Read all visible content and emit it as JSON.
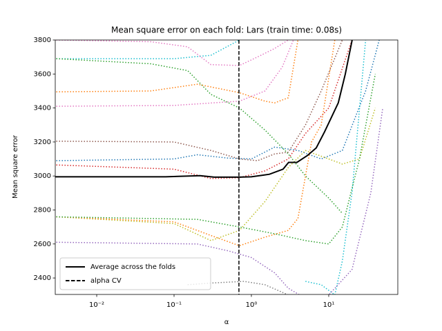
{
  "chart_data": {
    "type": "line",
    "title": "Mean square error on each fold: Lars (train time: 0.08s)",
    "x_label": "α",
    "y_label": "Mean square error",
    "xscale": "log",
    "xlim": [
      0.00291,
      78.2
    ],
    "ylim": [
      2303,
      3800
    ],
    "xticks": [
      {
        "value": 0.01,
        "label": "10⁻²"
      },
      {
        "value": 0.1,
        "label": "10⁻¹"
      },
      {
        "value": 1,
        "label": "10⁰"
      },
      {
        "value": 10,
        "label": "10¹"
      }
    ],
    "yticks": [
      2400,
      2600,
      2800,
      3000,
      3200,
      3400,
      3600,
      3800
    ],
    "legend": "lower left",
    "vline": {
      "name": "alpha CV",
      "value": 0.69,
      "color": "#000000",
      "linestyle": "dashed"
    },
    "series": [
      {
        "color": "#17becf",
        "linestyle": "dotted",
        "x": [
          0.003,
          0.1,
          0.3,
          0.7
        ],
        "values": [
          3690,
          3690,
          3710,
          3800
        ]
      },
      {
        "color": "#e377c2",
        "linestyle": "dotted",
        "x": [
          0.003,
          0.05,
          0.15,
          0.3,
          0.7,
          1.2,
          2,
          3
        ],
        "values": [
          3800,
          3790,
          3760,
          3655,
          3650,
          3700,
          3750,
          3800
        ]
      },
      {
        "color": "#2ca02c",
        "linestyle": "dotted",
        "x": [
          0.003,
          0.05,
          0.15,
          0.3,
          0.7,
          1.5,
          3,
          5,
          10,
          15
        ],
        "values": [
          3690,
          3660,
          3620,
          3480,
          3400,
          3270,
          3130,
          3000,
          2870,
          2780
        ]
      },
      {
        "color": "#ff7f0e",
        "linestyle": "dotted",
        "x": [
          0.003,
          0.05,
          0.2,
          0.7,
          1.5,
          2,
          3,
          4
        ],
        "values": [
          3495,
          3500,
          3540,
          3490,
          3440,
          3430,
          3460,
          3800
        ]
      },
      {
        "color": "#e377c2",
        "linestyle": "dotted",
        "x": [
          0.003,
          0.1,
          0.7,
          1.5,
          2.5,
          3.5
        ],
        "values": [
          3410,
          3415,
          3440,
          3500,
          3640,
          3800
        ]
      },
      {
        "color": "#8c564b",
        "linestyle": "dotted",
        "x": [
          0.003,
          0.1,
          0.3,
          0.7,
          1.2,
          2,
          3,
          5,
          8,
          15
        ],
        "values": [
          3205,
          3200,
          3150,
          3100,
          3090,
          3130,
          3140,
          3300,
          3500,
          3800
        ]
      },
      {
        "color": "#1f77b4",
        "linestyle": "dotted",
        "x": [
          0.003,
          0.1,
          0.2,
          0.5,
          1,
          2,
          4,
          8,
          15,
          30,
          45
        ],
        "values": [
          3090,
          3100,
          3125,
          3105,
          3100,
          3170,
          3150,
          3100,
          3150,
          3500,
          3800
        ]
      },
      {
        "color": "#d62728",
        "linestyle": "dotted",
        "x": [
          0.003,
          0.1,
          0.3,
          0.7,
          1.5,
          3,
          5,
          10,
          20
        ],
        "values": [
          3065,
          3040,
          2985,
          2990,
          3030,
          3100,
          3250,
          3400,
          3800
        ]
      },
      {
        "color": "#bcbd22",
        "linestyle": "dotted",
        "x": [
          0.003,
          0.1,
          0.3,
          0.7,
          1.5,
          3,
          5,
          10,
          15,
          25,
          40
        ],
        "values": [
          2760,
          2720,
          2620,
          2680,
          2850,
          3050,
          3150,
          3100,
          3070,
          3100,
          3400
        ]
      },
      {
        "color": "#ff7f0e",
        "linestyle": "dotted",
        "x": [
          0.003,
          0.1,
          0.3,
          0.7,
          1.5,
          3,
          4,
          6,
          8,
          12
        ],
        "values": [
          2760,
          2730,
          2650,
          2590,
          2640,
          2680,
          2750,
          3200,
          3300,
          3800
        ]
      },
      {
        "color": "#2ca02c",
        "linestyle": "dotted",
        "x": [
          0.003,
          0.2,
          0.7,
          2,
          5,
          10,
          15,
          25,
          40
        ],
        "values": [
          2760,
          2745,
          2700,
          2660,
          2620,
          2600,
          2700,
          3100,
          3600
        ]
      },
      {
        "color": "#9467bd",
        "linestyle": "dotted",
        "x": [
          0.003,
          0.2,
          0.5,
          1,
          2,
          3,
          5
        ],
        "values": [
          2610,
          2600,
          2560,
          2520,
          2430,
          2340,
          2280
        ]
      },
      {
        "color": "#7f7f7f",
        "linestyle": "dotted",
        "x": [
          0.15,
          0.3,
          0.8,
          1.5,
          3
        ],
        "values": [
          2360,
          2370,
          2380,
          2360,
          2300
        ]
      },
      {
        "color": "#17becf",
        "linestyle": "dotted",
        "x": [
          5,
          8,
          12,
          15,
          20,
          30
        ],
        "values": [
          2380,
          2360,
          2300,
          2500,
          2900,
          3800
        ]
      },
      {
        "color": "#9467bd",
        "linestyle": "dotted",
        "x": [
          3,
          10,
          20,
          35,
          50
        ],
        "values": [
          2300,
          2300,
          2450,
          2900,
          3400
        ]
      },
      {
        "name": "Average across the folds",
        "color": "#000000",
        "linestyle": "solid",
        "x": [
          0.00291,
          0.078,
          0.218,
          0.33,
          0.69,
          1,
          1.71,
          2.57,
          3.03,
          3.88,
          5.29,
          6.9,
          8.84,
          13.3,
          16.4,
          20.1
        ],
        "values": [
          2995,
          2995,
          3002,
          2993,
          2993,
          2995,
          3010,
          3040,
          3080,
          3080,
          3120,
          3165,
          3260,
          3430,
          3600,
          3800
        ]
      }
    ]
  }
}
